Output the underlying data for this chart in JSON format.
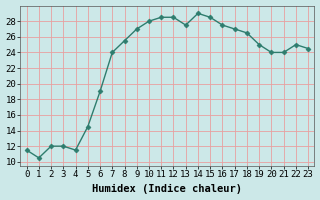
{
  "x": [
    0,
    1,
    2,
    3,
    4,
    5,
    6,
    7,
    8,
    9,
    10,
    11,
    12,
    13,
    14,
    15,
    16,
    17,
    18,
    19,
    20,
    21,
    22,
    23
  ],
  "y": [
    11.5,
    10.5,
    12.0,
    12.0,
    11.5,
    14.5,
    19.0,
    24.0,
    25.5,
    27.0,
    28.0,
    28.5,
    28.5,
    27.5,
    29.0,
    28.5,
    27.5,
    27.0,
    26.5,
    25.0,
    24.0,
    24.0,
    25.0,
    24.5
  ],
  "line_color": "#2e7d6e",
  "marker": "D",
  "marker_size": 2.5,
  "line_width": 1.0,
  "bg_color": "#cce8e8",
  "grid_color": "#e8a0a0",
  "xlabel": "Humidex (Indice chaleur)",
  "xlabel_fontsize": 7.5,
  "tick_fontsize": 6.5,
  "ylim": [
    9.5,
    30
  ],
  "xlim": [
    -0.5,
    23.5
  ],
  "yticks": [
    10,
    12,
    14,
    16,
    18,
    20,
    22,
    24,
    26,
    28
  ],
  "xticks": [
    0,
    1,
    2,
    3,
    4,
    5,
    6,
    7,
    8,
    9,
    10,
    11,
    12,
    13,
    14,
    15,
    16,
    17,
    18,
    19,
    20,
    21,
    22,
    23
  ]
}
